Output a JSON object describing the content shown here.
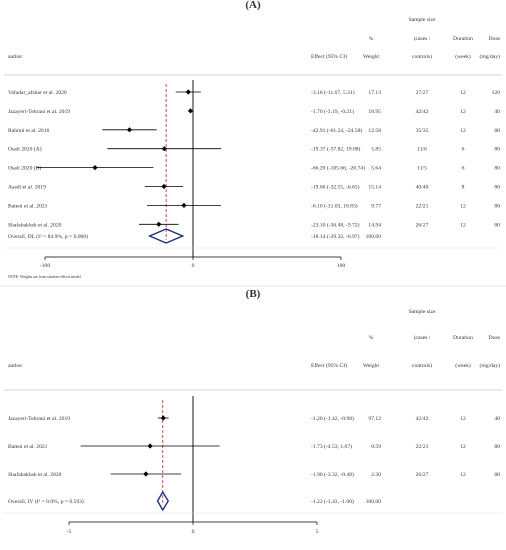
{
  "chart_data": [
    {
      "type": "forest",
      "panel_label": "(A)",
      "headers": {
        "author": "author",
        "effect": "Effect (95% CI)",
        "weight_top": "%",
        "weight": "Weight",
        "sample_size": "Sample size",
        "cases": "(cases /",
        "controls": "controls)",
        "duration": "Duration",
        "duration_unit": "(week)",
        "dose": "Dose",
        "dose_unit": "(mg/day)"
      },
      "studies": [
        {
          "author": "Vafadar_afshar et al. 2020",
          "effect": -3.18,
          "lower": -11.67,
          "upper": 5.31,
          "ci_text": "-3.18 (-11.67, 5.31)",
          "weight": "17.13",
          "sample": "27/27",
          "duration": "12",
          "dose": "120"
        },
        {
          "author": "Jazayeri-Tehrani et al. 2019",
          "effect": -1.7,
          "lower": -3.19,
          "upper": -0.21,
          "ci_text": "-1.70 (-3.19, -0.21)",
          "weight": "18.95",
          "sample": "42/42",
          "duration": "12",
          "dose": "40"
        },
        {
          "author": "Rahimi et al. 2016",
          "effect": -42.91,
          "lower": -61.24,
          "upper": -24.58,
          "ci_text": "-42.91 (-61.24, -24.58)",
          "weight": "12.58",
          "sample": "35/35",
          "duration": "12",
          "dose": "80"
        },
        {
          "author": "Osali 2020 (A)",
          "effect": -19.37,
          "lower": -57.82,
          "upper": 19.08,
          "ci_text": "-19.37 (-57.82, 19.08)",
          "weight": "5.85",
          "sample": "11/6",
          "duration": "6",
          "dose": "80"
        },
        {
          "author": "Osali 2020 (B)",
          "effect": -66.2,
          "lower": -105.66,
          "upper": -26.74,
          "ci_text": "-66.20 (-105.66, -26.74)",
          "weight": "5.64",
          "sample": "11/5",
          "duration": "6",
          "dose": "80"
        },
        {
          "author": "Asadi et al. 2019",
          "effect": -19.6,
          "lower": -32.55,
          "upper": -6.65,
          "ci_text": "-19.60 (-32.55, -6.65)",
          "weight": "15.14",
          "sample": "40/40",
          "duration": "8",
          "dose": "80"
        },
        {
          "author": "Bateni et al. 2021",
          "effect": -6.1,
          "lower": -31.03,
          "upper": 18.83,
          "ci_text": "-6.10 (-31.03, 18.83)",
          "weight": "9.77",
          "sample": "22/21",
          "duration": "12",
          "dose": "80"
        },
        {
          "author": "Shafabakhsh et al. 2020",
          "effect": -23.1,
          "lower": -36.48,
          "upper": -9.72,
          "ci_text": "-23.10 (-36.48, -9.72)",
          "weight": "14.94",
          "sample": "26/27",
          "duration": "12",
          "dose": "80"
        }
      ],
      "overall": {
        "label": "Overall, DL (I² = 84.9%, p = 0.000)",
        "effect": -18.14,
        "lower": -29.32,
        "upper": -6.97,
        "ci_text": "-18.14 (-29.32, -6.97)",
        "weight": "100.00"
      },
      "x_ticks": [
        -100,
        0,
        100
      ],
      "x_tick_labels": [
        "-100",
        "0",
        "100"
      ],
      "xlim": [
        -135,
        100
      ],
      "note": "NOTE: Weights are from random-effects model"
    },
    {
      "type": "forest",
      "panel_label": "(B)",
      "headers": {
        "author": "author",
        "effect": "Effect (95% CI)",
        "weight_top": "%",
        "weight": "Weight",
        "sample_size": "Sample size",
        "cases": "(cases /",
        "controls": "controls)",
        "duration": "Duration",
        "duration_unit": "(week)",
        "dose": "Dose",
        "dose_unit": "(mg/day)"
      },
      "studies": [
        {
          "author": "Jazayeri-Tehrani et al. 2019",
          "effect": -1.2,
          "lower": -1.42,
          "upper": -0.98,
          "ci_text": "-1.20 (-1.42, -0.98)",
          "weight": "97.12",
          "sample": "42/42",
          "duration": "12",
          "dose": "40"
        },
        {
          "author": "Bateni et al. 2021",
          "effect": -1.73,
          "lower": -4.53,
          "upper": 1.07,
          "ci_text": "-1.73 (-4.53, 1.07)",
          "weight": "0.59",
          "sample": "22/21",
          "duration": "12",
          "dose": "80"
        },
        {
          "author": "Shafabakhsh et al. 2020",
          "effect": -1.9,
          "lower": -3.32,
          "upper": -0.48,
          "ci_text": "-1.90 (-3.32, -0.48)",
          "weight": "2.30",
          "sample": "26/27",
          "duration": "12",
          "dose": "80"
        }
      ],
      "overall": {
        "label": "Overall, IV (I² = 0.0%, p = 0.593)",
        "effect": -1.22,
        "lower": -1.43,
        "upper": -1.0,
        "ci_text": "-1.22 (-1.43, -1.00)",
        "weight": "100.00"
      },
      "x_ticks": [
        -5,
        0,
        5
      ],
      "x_tick_labels": [
        "-5",
        "0",
        "5"
      ],
      "xlim": [
        -5.0,
        5.0
      ],
      "note": ""
    }
  ]
}
